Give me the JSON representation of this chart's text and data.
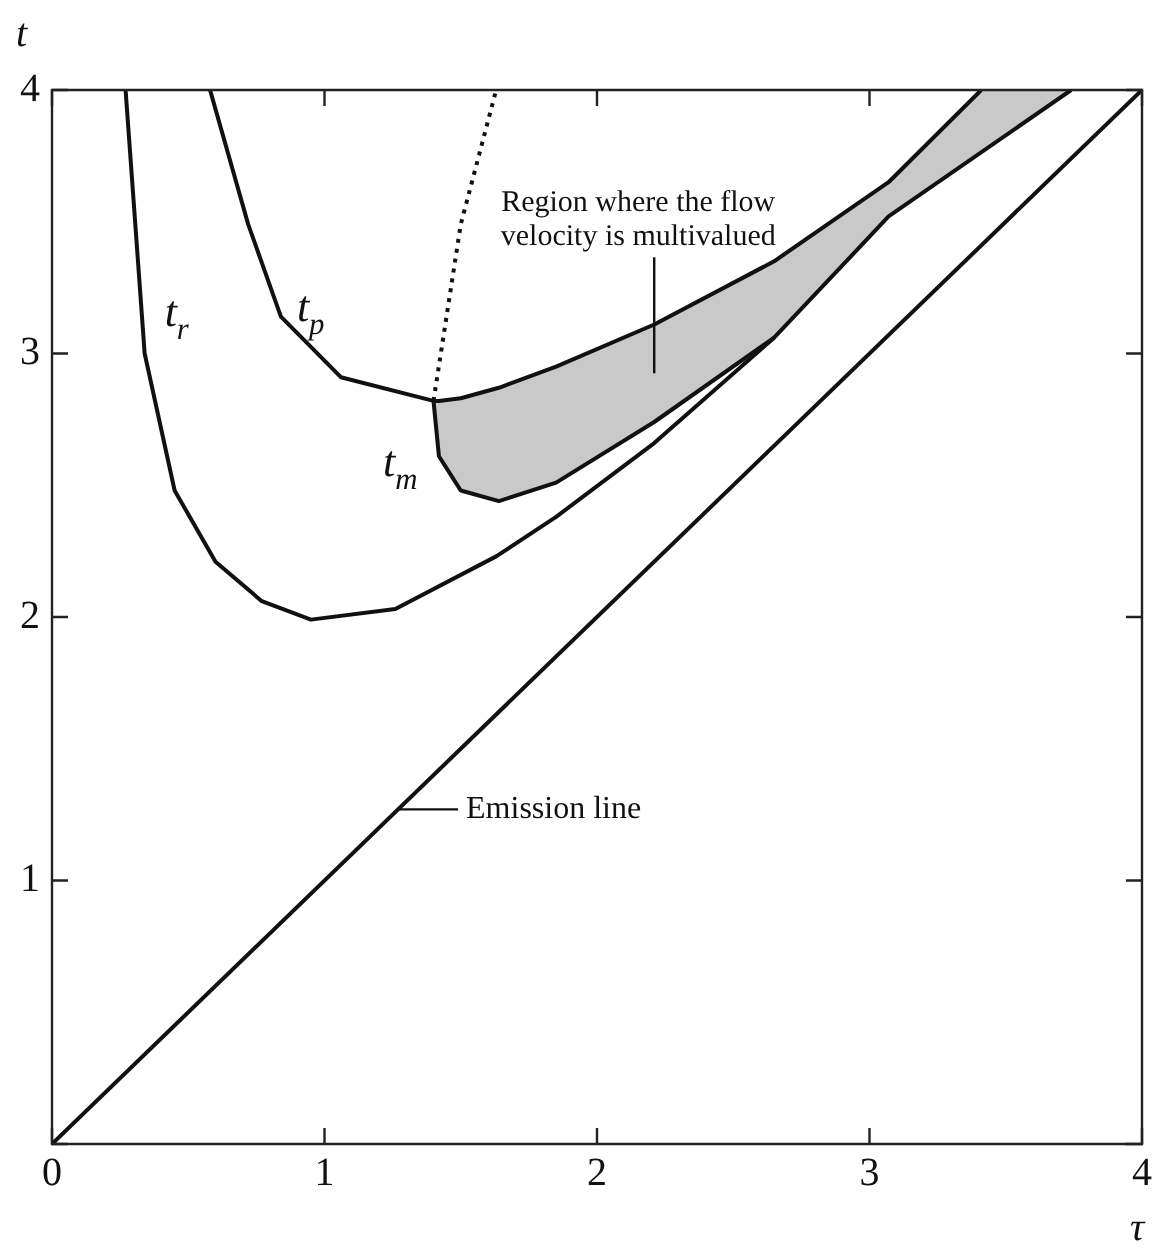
{
  "chart_data": {
    "type": "line",
    "xlabel": "τ",
    "ylabel": "t",
    "xlim": [
      0,
      4
    ],
    "ylim": [
      0,
      4
    ],
    "xticks": [
      0,
      1,
      2,
      3,
      4
    ],
    "yticks": [
      {
        "value": 0,
        "label": null
      },
      1,
      2,
      3,
      4
    ],
    "grid": false,
    "legend": false,
    "marker": "none",
    "series": [
      {
        "name": "t$_{r}$",
        "color": "#111111",
        "line_style": "solid",
        "x": [
          0.27,
          0.34,
          0.45,
          0.6,
          0.77,
          0.95,
          1.26,
          1.63,
          1.85,
          2.21,
          2.65,
          3.07,
          3.74
        ],
        "values": [
          4.0,
          3.0,
          2.48,
          2.21,
          2.06,
          1.99,
          2.03,
          2.23,
          2.38,
          2.66,
          3.06,
          3.52,
          4.0
        ]
      },
      {
        "name": "t$_{p}$",
        "color": "#111111",
        "line_style": "solid",
        "x": [
          0.58,
          0.72,
          0.84,
          1.06,
          1.4,
          1.42,
          1.5,
          1.64,
          1.85,
          2.21,
          2.65,
          3.07,
          3.41,
          3.74
        ],
        "values": [
          4.0,
          3.49,
          3.14,
          2.91,
          2.82,
          2.82,
          2.83,
          2.87,
          2.95,
          3.11,
          3.35,
          3.65,
          4.0,
          null
        ],
        "lower": [
          null,
          null,
          null,
          null,
          2.82,
          2.61,
          2.48,
          2.44,
          2.51,
          2.74,
          3.06,
          3.52,
          3.76,
          4.0
        ],
        "upper": [
          null,
          null,
          null,
          null,
          2.82,
          2.82,
          2.83,
          2.87,
          2.95,
          3.11,
          3.35,
          3.65,
          4.0,
          4.0
        ]
      },
      {
        "name": "t$_{m}$",
        "color": "#111111",
        "line_style": "solid",
        "x": [
          1.4,
          1.42,
          1.5,
          1.64,
          1.85,
          2.21,
          2.65
        ],
        "values": [
          2.82,
          2.61,
          2.48,
          2.44,
          2.51,
          2.74,
          3.06
        ]
      },
      {
        "color": "#111111",
        "line_style": "dotted",
        "x": [
          1.4,
          1.5,
          1.63
        ],
        "values": [
          2.82,
          3.49,
          4.0
        ]
      },
      {
        "color": "#111111",
        "line_style": "solid",
        "x": [
          0,
          4
        ],
        "values": [
          0,
          4
        ]
      }
    ],
    "annotations": [
      "Region where the flow velocity is multivalued",
      {
        "text": "Emission line",
        "x": 1.27,
        "y": 1.27
      }
    ]
  }
}
